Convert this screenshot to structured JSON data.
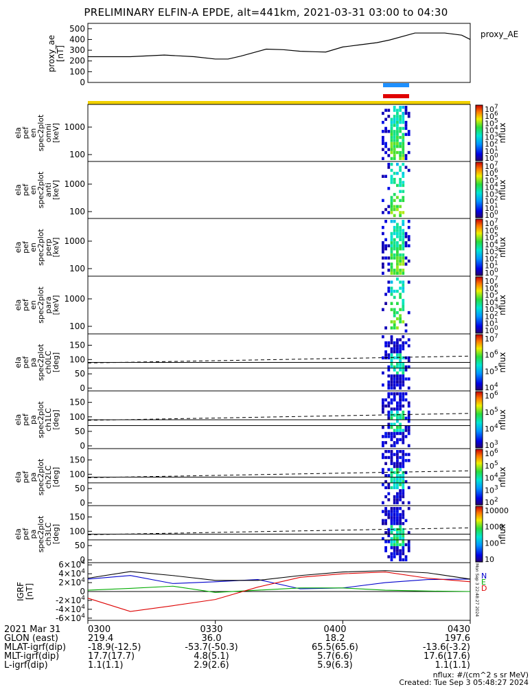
{
  "title": "PRELIMINARY ELFIN-A EPDE, alt=441km, 2021-03-31 03:00 to 04:30",
  "colors": {
    "blue_bar": "#1e90ff",
    "red_bar": "#e00000",
    "yellow_bar": "#f0d000",
    "comp_n": "#0000cc",
    "comp_e": "#00aa00",
    "comp_d": "#dd0000"
  },
  "chart_data": [
    {
      "type": "line",
      "panel": "proxy_ae",
      "ylabel": [
        "proxy_ae",
        "[nT]"
      ],
      "legend": "proxy_AE",
      "yticks": [
        "500",
        "400",
        "300",
        "200",
        "100",
        "0"
      ],
      "ylim": [
        0,
        550
      ],
      "x_minutes": [
        0,
        10,
        18,
        25,
        30,
        33,
        36,
        42,
        46,
        50,
        54,
        56,
        60,
        64,
        68,
        71,
        77,
        84,
        88,
        90
      ],
      "values": [
        240,
        240,
        255,
        240,
        218,
        218,
        245,
        310,
        305,
        290,
        285,
        283,
        330,
        350,
        370,
        395,
        460,
        460,
        440,
        400
      ]
    },
    {
      "type": "heatmap",
      "panel": "ela_pef_en_spec2plot_omni",
      "ylabel": [
        "ela",
        "pef",
        "en",
        "spec2plot",
        "omni",
        "[keV]"
      ],
      "yticks": [
        "1000",
        "100"
      ],
      "colorbar_ticks": [
        "10^7",
        "10^6",
        "10^5",
        "10^4",
        "10^3",
        "10^2",
        "10^1",
        "10^0"
      ],
      "colorbar_label": "nflux"
    },
    {
      "type": "heatmap",
      "panel": "ela_pef_en_spec2plot_anti",
      "ylabel": [
        "ela",
        "pef",
        "en",
        "spec2plot",
        "anti",
        "[keV]"
      ],
      "yticks": [
        "1000",
        "100"
      ],
      "colorbar_ticks": [
        "10^7",
        "10^6",
        "10^5",
        "10^4",
        "10^3",
        "10^2",
        "10^1",
        "10^0"
      ],
      "colorbar_label": "nflux"
    },
    {
      "type": "heatmap",
      "panel": "ela_pef_en_spec2plot_perp",
      "ylabel": [
        "ela",
        "pef",
        "en",
        "spec2plot",
        "perp",
        "[keV]"
      ],
      "yticks": [
        "1000",
        "100"
      ],
      "colorbar_ticks": [
        "10^7",
        "10^6",
        "10^5",
        "10^4",
        "10^3",
        "10^2",
        "10^1",
        "10^0"
      ],
      "colorbar_label": "nflux"
    },
    {
      "type": "heatmap",
      "panel": "ela_pef_en_spec2plot_para",
      "ylabel": [
        "ela",
        "pef",
        "en",
        "spec2plot",
        "para",
        "[keV]"
      ],
      "yticks": [
        "1000",
        "100"
      ],
      "colorbar_ticks": [
        "10^7",
        "10^6",
        "10^5",
        "10^4",
        "10^3",
        "10^2",
        "10^1",
        "10^0"
      ],
      "colorbar_label": "nflux"
    },
    {
      "type": "heatmap",
      "panel": "ela_pef_pa_spec2plot_ch0LC",
      "ylabel": [
        "ela",
        "pef",
        "pa",
        "spec2plot",
        "ch0LC",
        "[deg]"
      ],
      "yticks": [
        "150",
        "100",
        "50",
        "0"
      ],
      "colorbar_ticks": [
        "10^7",
        "10^6",
        "10^5",
        "10^4"
      ],
      "colorbar_label": "nflux"
    },
    {
      "type": "heatmap",
      "panel": "ela_pef_pa_spec2plot_ch1LC",
      "ylabel": [
        "ela",
        "pef",
        "pa",
        "spec2plot",
        "ch1LC",
        "[deg]"
      ],
      "yticks": [
        "150",
        "100",
        "50",
        "0"
      ],
      "colorbar_ticks": [
        "10^6",
        "10^5",
        "10^4",
        "10^3"
      ],
      "colorbar_label": "nflux"
    },
    {
      "type": "heatmap",
      "panel": "ela_pef_pa_spec2plot_ch2LC",
      "ylabel": [
        "ela",
        "pef",
        "pa",
        "spec2plot",
        "ch2LC",
        "[deg]"
      ],
      "yticks": [
        "150",
        "100",
        "50",
        "0"
      ],
      "colorbar_ticks": [
        "10^6",
        "10^5",
        "10^4",
        "10^3",
        "10^2"
      ],
      "colorbar_label": "nflux"
    },
    {
      "type": "heatmap",
      "panel": "ela_pef_pa_spec2plot_ch3LC",
      "ylabel": [
        "ela",
        "pef",
        "pa",
        "spec2plot",
        "ch3LC",
        "[deg]"
      ],
      "yticks": [
        "150",
        "100",
        "50",
        "0"
      ],
      "colorbar_ticks": [
        "10000",
        "1000",
        "100",
        "10"
      ],
      "colorbar_label": "nflux"
    },
    {
      "type": "line",
      "panel": "IGRF",
      "ylabel": [
        "IGRF",
        "[nT]"
      ],
      "yticks": [
        "6×10^4",
        "4×10^4",
        "2×10^4",
        "0",
        "-2×10^4",
        "-4×10^4",
        "-6×10^4"
      ],
      "ylim": [
        -65000,
        65000
      ],
      "legend": [
        "N",
        "E",
        "D"
      ],
      "side_text": "Mon Sep  3 22:48:27 2024",
      "x_minutes": [
        0,
        10,
        20,
        30,
        40,
        50,
        60,
        70,
        80,
        90
      ],
      "series": [
        {
          "name": "N",
          "values": [
            28000,
            36000,
            18000,
            22000,
            27000,
            6000,
            8000,
            20000,
            27000,
            28000
          ]
        },
        {
          "name": "E",
          "values": [
            3000,
            7000,
            12000,
            -2000,
            3000,
            8000,
            8000,
            3000,
            1000,
            0
          ]
        },
        {
          "name": "D",
          "values": [
            -15000,
            -45000,
            -32000,
            -18000,
            10000,
            32000,
            40000,
            44000,
            30000,
            22000
          ]
        },
        {
          "name": "Total",
          "values": [
            30000,
            45000,
            36000,
            25000,
            25000,
            36000,
            44000,
            47000,
            42000,
            28000
          ]
        }
      ]
    }
  ],
  "footer": {
    "rows": [
      {
        "label": "2021 Mar 31",
        "vals": [
          "0300",
          "0330",
          "0400",
          "0430"
        ]
      },
      {
        "label": "GLON (east)",
        "vals": [
          "219.4",
          "36.0",
          "18.2",
          "197.6"
        ]
      },
      {
        "label": "MLAT-igrf(dip)",
        "vals": [
          "-18.9(-12.5)",
          "-53.7(-50.3)",
          "65.5(65.6)",
          "-13.6(-3.2)"
        ]
      },
      {
        "label": "MLT-igrf(dip)",
        "vals": [
          "17.7(17.7)",
          "4.8(5.1)",
          "5.7(6.6)",
          "17.6(17.6)"
        ]
      },
      {
        "label": "L-igrf(dip)",
        "vals": [
          "1.1(1.1)",
          "2.9(2.6)",
          "5.9(6.3)",
          "1.1(1.1)"
        ]
      }
    ],
    "units": "nflux: #/(cm^2 s sr MeV)",
    "created": "Created: Tue Sep  3 05:48:27 2024"
  }
}
